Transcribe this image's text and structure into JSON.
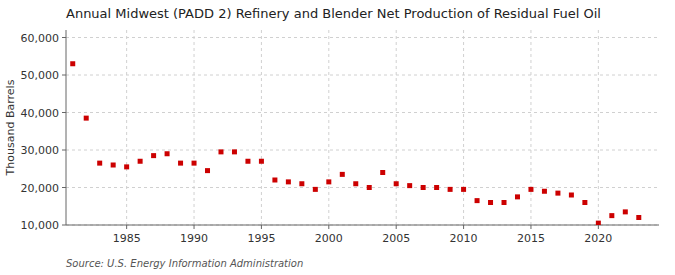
{
  "chart_data": {
    "type": "scatter",
    "title": "Annual Midwest (PADD 2) Refinery and Blender Net Production of Residual Fuel Oil",
    "ylabel": "Thousand Barrels",
    "annotations": [
      "Source: U.S. Energy Information Administration"
    ],
    "x": [
      1981,
      1982,
      1983,
      1984,
      1985,
      1986,
      1987,
      1988,
      1989,
      1990,
      1991,
      1992,
      1993,
      1994,
      1995,
      1996,
      1997,
      1998,
      1999,
      2000,
      2001,
      2002,
      2003,
      2004,
      2005,
      2006,
      2007,
      2008,
      2009,
      2010,
      2011,
      2012,
      2013,
      2014,
      2015,
      2016,
      2017,
      2018,
      2019,
      2020,
      2021,
      2022,
      2023
    ],
    "values": [
      53000,
      38500,
      26500,
      26000,
      25500,
      27000,
      28500,
      29000,
      26500,
      26500,
      24500,
      29500,
      29500,
      27000,
      27000,
      22000,
      21500,
      21000,
      19500,
      21500,
      23500,
      21000,
      20000,
      24000,
      21000,
      20500,
      20000,
      20000,
      19500,
      19500,
      16500,
      16000,
      16000,
      17500,
      19500,
      19000,
      18500,
      18000,
      16000,
      10500,
      12500,
      13500,
      12000
    ],
    "color": "#cc0000",
    "marker": "square",
    "grid": true,
    "xlim": [
      1980.5,
      2024.5
    ],
    "xticks": [
      1985,
      1990,
      1995,
      2000,
      2005,
      2010,
      2015,
      2020
    ],
    "ylim": [
      10000,
      62000
    ],
    "yticks": [
      {
        "value": 10000,
        "label": "10,000"
      },
      {
        "value": 20000,
        "label": "20,000"
      },
      {
        "value": 30000,
        "label": "30,000"
      },
      {
        "value": 40000,
        "label": "40,000"
      },
      {
        "value": 50000,
        "label": "50,000"
      },
      {
        "value": 60000,
        "label": "60,000"
      }
    ]
  }
}
